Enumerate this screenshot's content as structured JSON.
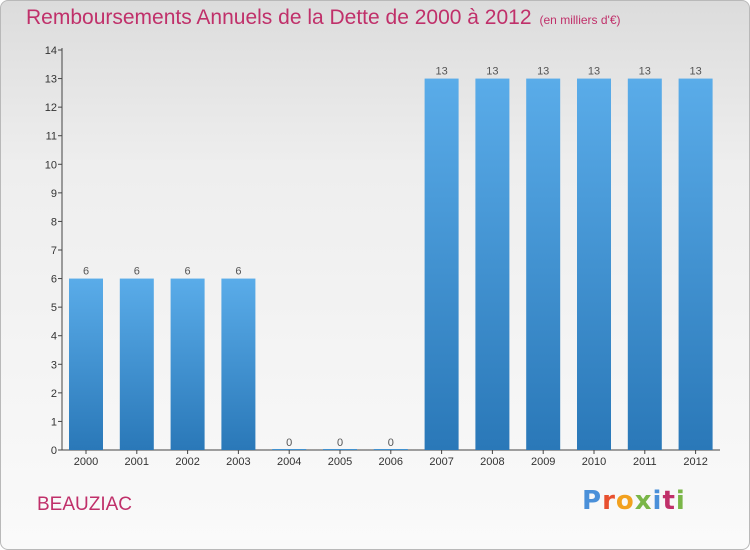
{
  "header": {
    "title": "Remboursements Annuels de la Dette de 2000 à 2012",
    "unit": "(en milliers d'€)"
  },
  "footer": {
    "place": "BEAUZIAC",
    "logo_text": "Proxiti",
    "logo_colors": [
      "#4a90d9",
      "#e8502f",
      "#f2a11f",
      "#7ab648",
      "#4a90d9",
      "#c0306a",
      "#7ab648"
    ]
  },
  "colors": {
    "title": "#c0306a",
    "bar_top": "#5aace9",
    "bar_bottom": "#2a78b8"
  },
  "chart_data": {
    "type": "bar",
    "title": "Remboursements Annuels de la Dette de 2000 à 2012",
    "subtitle": "(en milliers d'€)",
    "categories": [
      "2000",
      "2001",
      "2002",
      "2003",
      "2004",
      "2005",
      "2006",
      "2007",
      "2008",
      "2009",
      "2010",
      "2011",
      "2012"
    ],
    "values": [
      6,
      6,
      6,
      6,
      0,
      0,
      0,
      13,
      13,
      13,
      13,
      13,
      13
    ],
    "data_labels": [
      "6",
      "6",
      "6",
      "6",
      "0",
      "0",
      "0",
      "13",
      "13",
      "13",
      "13",
      "13",
      "13"
    ],
    "ylim": [
      0,
      14
    ],
    "yticks": [
      0,
      1,
      2,
      3,
      4,
      5,
      6,
      7,
      8,
      9,
      10,
      11,
      12,
      13,
      14
    ],
    "xlabel": "",
    "ylabel": "",
    "grid": false
  }
}
